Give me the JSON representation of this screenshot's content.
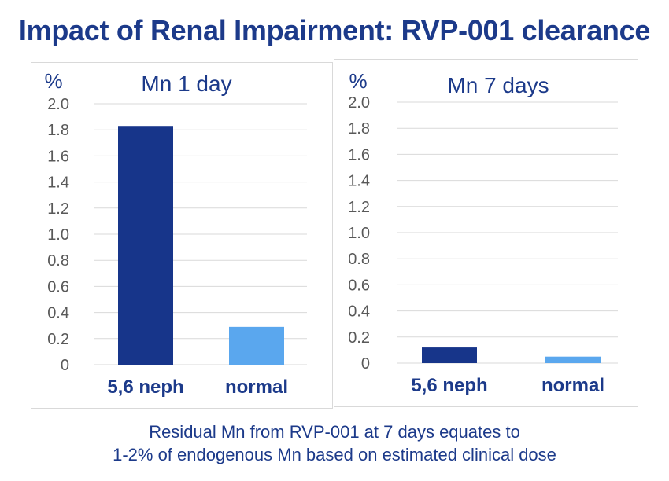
{
  "title": "Impact of Renal Impairment: RVP-001 clearance",
  "colors": {
    "title": "#1c3a8a",
    "bar_neph": "#17358a",
    "bar_normal": "#5aa7ee",
    "text": "#1c3a8a",
    "tick": "#595959",
    "grid": "#d9d9d9"
  },
  "footnote": {
    "line1": "Residual Mn from RVP-001 at 7 days equates to",
    "line2": "1-2% of endogenous Mn based on estimated clinical dose"
  },
  "chart_data": [
    {
      "type": "bar",
      "title": "Mn 1 day",
      "ylabel": "%",
      "categories": [
        "5,6 neph",
        "normal"
      ],
      "values": [
        1.83,
        0.29
      ],
      "ylim": [
        0,
        2.0
      ],
      "yticks": [
        "0",
        "0.2",
        "0.4",
        "0.6",
        "0.8",
        "1.0",
        "1.2",
        "1.4",
        "1.6",
        "1.8",
        "2.0"
      ],
      "grid": true
    },
    {
      "type": "bar",
      "title": "Mn 7 days",
      "ylabel": "%",
      "categories": [
        "5,6 neph",
        "normal"
      ],
      "values": [
        0.12,
        0.05
      ],
      "ylim": [
        0,
        2.0
      ],
      "yticks": [
        "0",
        "0.2",
        "0.4",
        "0.6",
        "0.8",
        "1.0",
        "1.2",
        "1.4",
        "1.6",
        "1.8",
        "2.0"
      ],
      "grid": true
    }
  ]
}
